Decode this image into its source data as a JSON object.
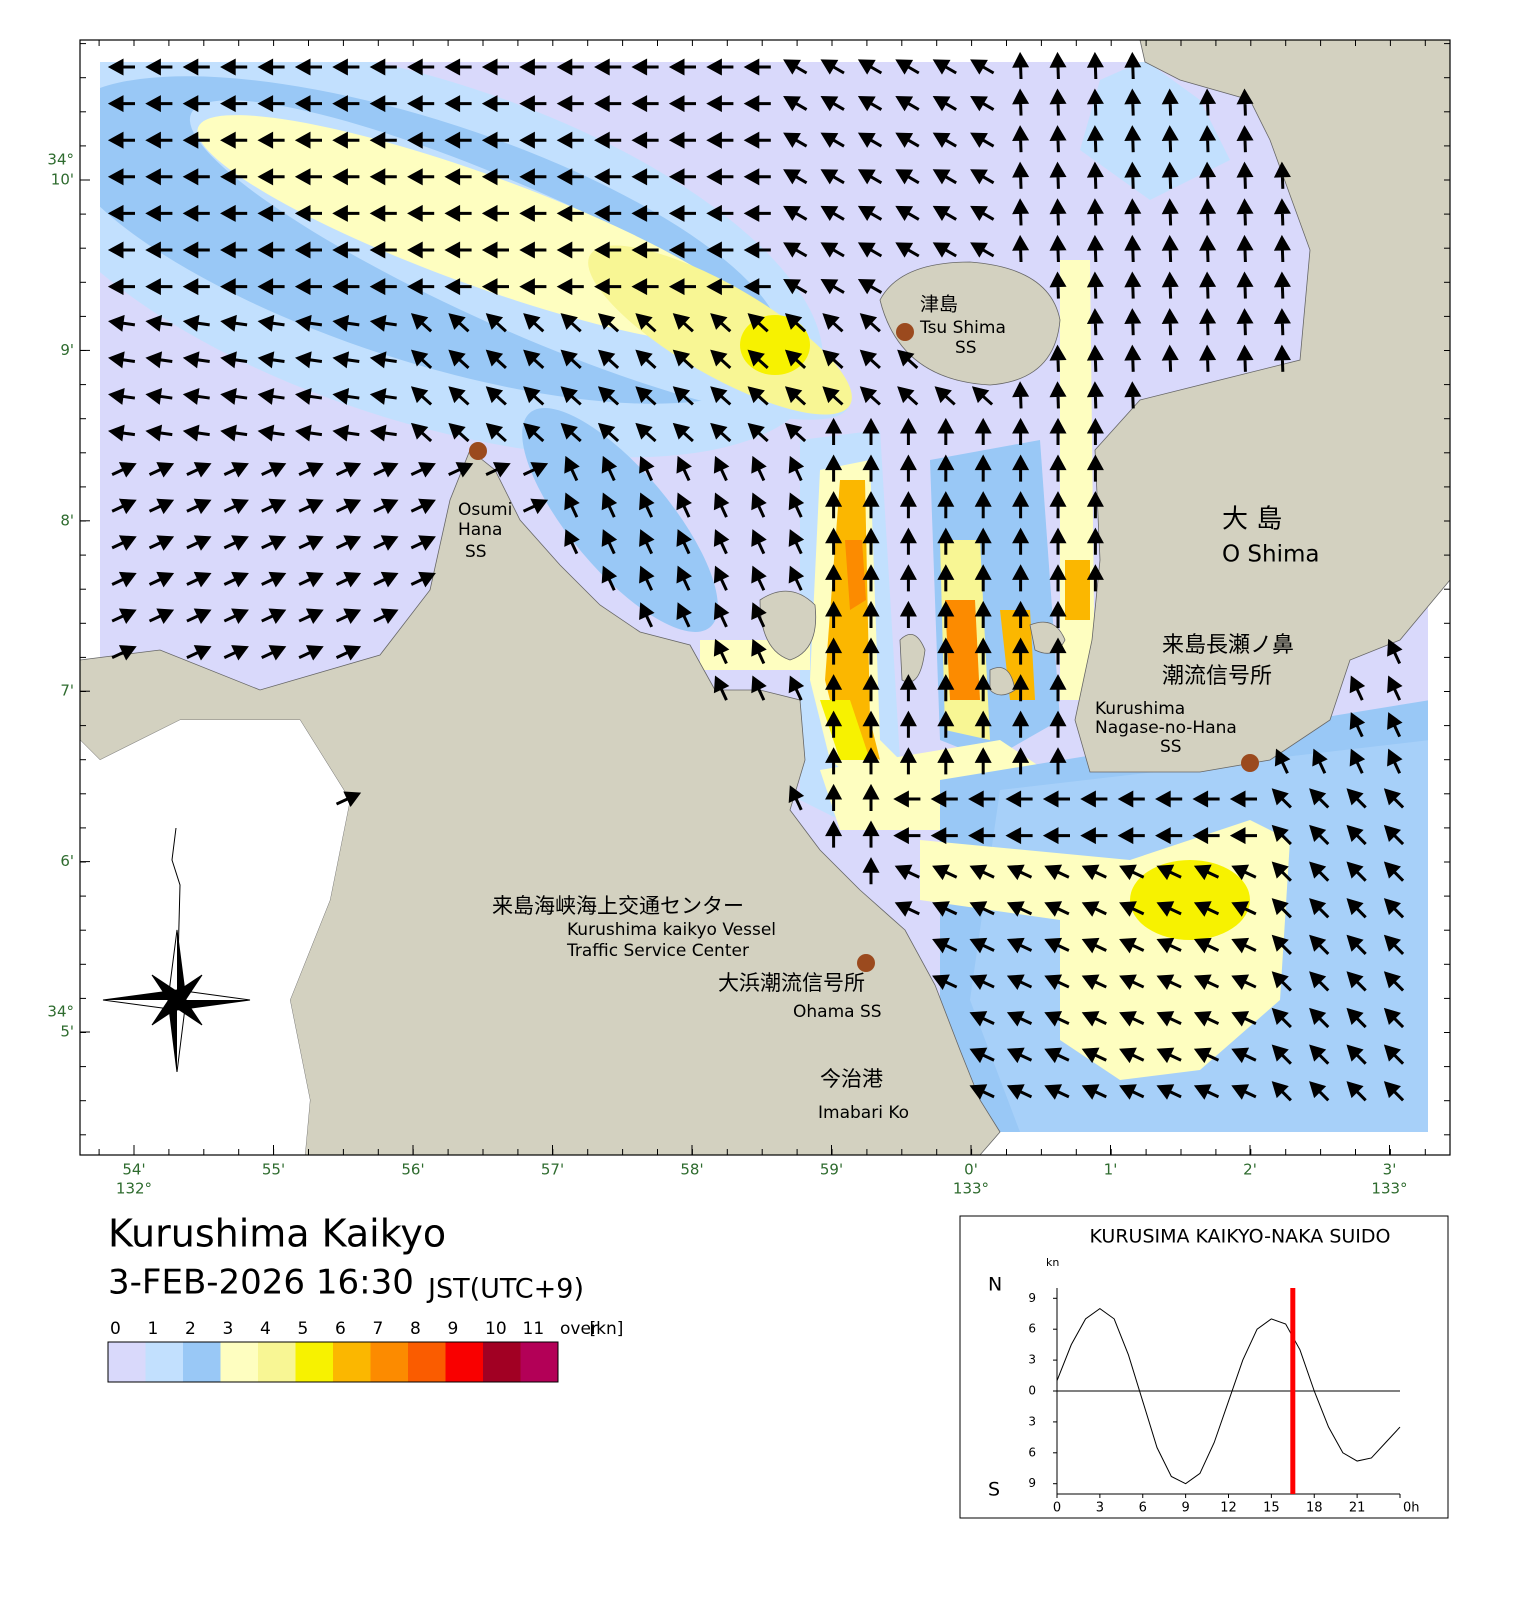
{
  "map": {
    "lat_ticks": [
      {
        "degree": "34°",
        "minute": "10'"
      },
      {
        "minute": "9'"
      },
      {
        "minute": "8'"
      },
      {
        "minute": "7'"
      },
      {
        "minute": "6'"
      },
      {
        "degree": "34°",
        "minute": "5'"
      }
    ],
    "lon_ticks": [
      {
        "minute": "54'",
        "degree": "132°"
      },
      {
        "minute": "55'"
      },
      {
        "minute": "56'"
      },
      {
        "minute": "57'"
      },
      {
        "minute": "58'"
      },
      {
        "minute": "59'"
      },
      {
        "minute": "0'",
        "degree": "133°"
      },
      {
        "minute": "1'"
      },
      {
        "minute": "2'"
      },
      {
        "minute": "3'",
        "degree": "133°"
      }
    ],
    "places": {
      "tsushima": [
        "津島",
        "Tsu Shima",
        "SS"
      ],
      "osumi": [
        "Osumi",
        "Hana",
        "SS"
      ],
      "oshima": [
        "大 島",
        "O Shima"
      ],
      "nagase": [
        "来島長瀬ノ鼻",
        "潮流信号所",
        "Kurushima",
        "Nagase-no-Hana",
        "SS"
      ],
      "center": [
        "来島海峡海上交通センター",
        "Kurushima kaikyo Vessel",
        "Traffic Service Center"
      ],
      "ohama": [
        "大浜潮流信号所",
        "Ohama SS"
      ],
      "imabari": [
        "今治港",
        "Imabari Ko"
      ]
    }
  },
  "header": {
    "title": "Kurushima Kaikyo",
    "datetime": "3-FEB-2026 16:30",
    "timezone": "JST(UTC+9)"
  },
  "legend": {
    "labels": [
      0,
      1,
      2,
      3,
      4,
      5,
      6,
      7,
      8,
      9,
      10,
      11,
      "over"
    ],
    "unit": "[kn]",
    "colors": [
      "#d9d9fb",
      "#c2e0fe",
      "#99c8f6",
      "#fefec0",
      "#f8f694",
      "#f7f200",
      "#fbb700",
      "#fc8b00",
      "#fa5c00",
      "#f90000",
      "#a10023",
      "#b30057"
    ]
  },
  "chart_data": {
    "type": "line",
    "title": "KURUSIMA KAIKYO-NAKA SUIDO",
    "y_unit": "kn",
    "north_label": "N",
    "south_label": "S",
    "x": [
      0,
      1,
      2,
      3,
      4,
      5,
      6,
      7,
      8,
      9,
      10,
      11,
      12,
      13,
      14,
      15,
      16,
      17,
      18,
      19,
      20,
      21,
      22,
      23,
      24
    ],
    "series": [
      {
        "color": "#000000",
        "values": [
          1,
          4.5,
          7,
          8,
          7,
          3.5,
          -1,
          -5.5,
          -8.3,
          -9,
          -8,
          -5,
          -1,
          3,
          6,
          7,
          6.5,
          4,
          0,
          -3.5,
          -6,
          -6.8,
          -6.5,
          -5,
          -3.5
        ]
      }
    ],
    "marker_x": 16.5,
    "marker_color": "#ff0000",
    "xlim": [
      0,
      24
    ],
    "xticks": [
      0,
      3,
      6,
      9,
      12,
      15,
      18,
      21,
      {
        "value": 24,
        "label": "0h"
      }
    ],
    "ylim": [
      -10,
      10
    ],
    "yticks": [
      9,
      6,
      3,
      0,
      {
        "value": -3,
        "label": "3"
      },
      {
        "value": -6,
        "label": "6"
      },
      {
        "value": -9,
        "label": "9"
      }
    ]
  }
}
